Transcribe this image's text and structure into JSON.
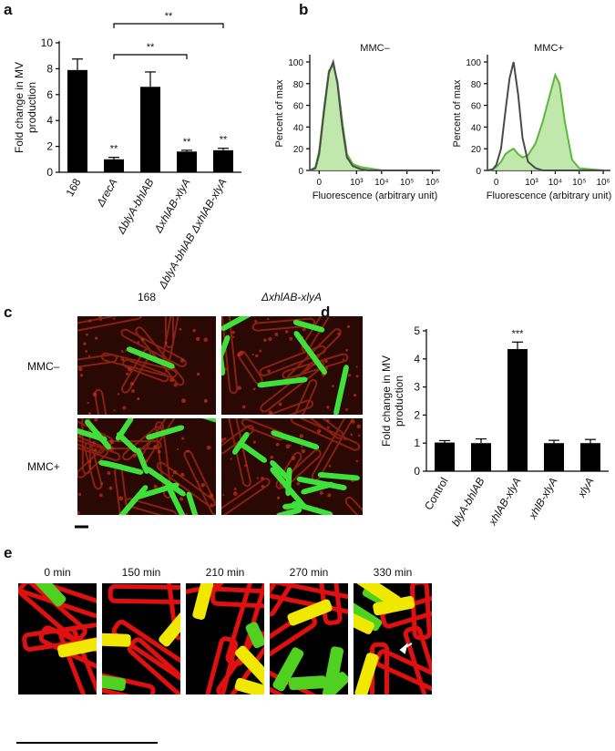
{
  "panel_letters": [
    "a",
    "b",
    "c",
    "d",
    "e"
  ],
  "chart_data": [
    {
      "type": "bar",
      "ylabel": [
        "Fold change in MV",
        "production"
      ],
      "categories": [
        "168",
        "ΔrecA",
        "ΔblyA-bhlAB",
        "ΔxhlAB-xlyA",
        "ΔblyA-bhlAB ΔxhlAB-xlyA"
      ],
      "values": [
        7.9,
        1.0,
        6.6,
        1.6,
        1.7
      ],
      "errors": [
        0.85,
        0.15,
        1.15,
        0.1,
        0.15
      ],
      "significance": [
        null,
        "**",
        null,
        "**",
        "**"
      ],
      "brackets": [
        "**",
        "**"
      ],
      "color": "#000000",
      "ylim": [
        0,
        10
      ],
      "yticks": [
        0,
        2,
        4,
        6,
        8,
        10
      ]
    },
    {
      "type": "line",
      "title": "MMC–",
      "ylabel": "Percent of max",
      "xlabel": "Fluorescence (arbitrary unit)",
      "xscale": "logicle",
      "x": [
        -20,
        -10,
        0,
        20,
        50,
        90,
        150,
        250,
        400,
        700,
        1500,
        3000,
        6000,
        10000,
        15000,
        25000,
        50000,
        100000,
        1000000
      ],
      "series": [
        {
          "color": "#5cb83a",
          "fill": "#b9e6a3",
          "values": [
            0,
            3,
            18,
            58,
            92,
            97,
            82,
            45,
            15,
            6,
            3,
            2,
            1,
            0,
            0,
            0,
            0,
            0,
            0
          ]
        },
        {
          "color": "#4a4a4a",
          "values": [
            0,
            2,
            15,
            55,
            90,
            100,
            80,
            40,
            12,
            4,
            1,
            0,
            0,
            0,
            0,
            0,
            0,
            0,
            0
          ]
        }
      ],
      "xlim": [
        -20,
        2000000
      ],
      "xticks": [
        {
          "value": 0,
          "label": "0"
        },
        {
          "value": 1000,
          "label": "10³"
        },
        {
          "value": 10000,
          "label": "10⁴"
        },
        {
          "value": 100000,
          "label": "10⁵"
        },
        {
          "value": 1000000,
          "label": "10⁶"
        }
      ],
      "ylim": [
        0,
        105
      ],
      "yticks": [
        0,
        20,
        40,
        60,
        80,
        100
      ]
    },
    {
      "type": "line",
      "title": "MMC+",
      "ylabel": "Percent of max",
      "xlabel": "Fluorescence (arbitrary unit)",
      "xscale": "logicle",
      "x": [
        -20,
        -10,
        0,
        20,
        50,
        90,
        150,
        250,
        400,
        700,
        1500,
        3000,
        6000,
        10000,
        15000,
        25000,
        50000,
        100000,
        1000000
      ],
      "series": [
        {
          "color": "#5cb83a",
          "fill": "#b9e6a3",
          "values": [
            0,
            1,
            3,
            8,
            15,
            18,
            20,
            15,
            12,
            14,
            25,
            45,
            70,
            88,
            80,
            45,
            10,
            2,
            0
          ]
        },
        {
          "color": "#4a4a4a",
          "values": [
            0,
            1,
            5,
            20,
            55,
            85,
            100,
            70,
            30,
            8,
            2,
            0,
            0,
            0,
            0,
            0,
            0,
            0,
            0
          ]
        }
      ],
      "xlim": [
        -20,
        2000000
      ],
      "xticks": [
        {
          "value": 0,
          "label": "0"
        },
        {
          "value": 1000,
          "label": "10³"
        },
        {
          "value": 10000,
          "label": "10⁴"
        },
        {
          "value": 100000,
          "label": "10⁵"
        },
        {
          "value": 1000000,
          "label": "10⁶"
        }
      ],
      "ylim": [
        0,
        105
      ],
      "yticks": [
        0,
        20,
        40,
        60,
        80,
        100
      ]
    },
    {
      "type": "bar",
      "ylabel": [
        "Fold change in MV",
        "production"
      ],
      "categories": [
        "Control",
        "blyA-bhlAB",
        "xhlAB-xlyA",
        "xhlB-xlyA",
        "xlyA"
      ],
      "values": [
        1.02,
        1.0,
        4.35,
        1.0,
        1.0
      ],
      "errors": [
        0.07,
        0.15,
        0.25,
        0.1,
        0.13
      ],
      "significance": [
        null,
        null,
        "***",
        null,
        null
      ],
      "color": "#000000",
      "ylim": [
        0,
        5
      ],
      "yticks": [
        0,
        1,
        2,
        3,
        4,
        5
      ]
    }
  ],
  "panel_c": {
    "columns": [
      "168",
      "ΔxhlAB-xlyA"
    ],
    "rows": [
      "MMC–",
      "MMC+"
    ]
  },
  "panel_e": {
    "times": [
      "0 min",
      "150 min",
      "210 min",
      "270 min",
      "330 min"
    ]
  }
}
